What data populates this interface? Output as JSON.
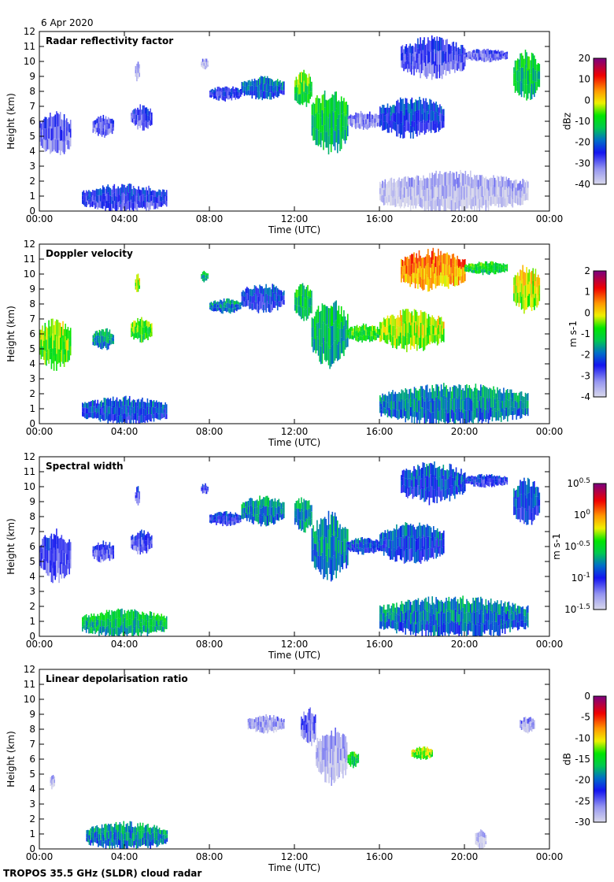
{
  "date_label": "6 Apr 2020",
  "footer": "TROPOS 35.5 GHz (SLDR) cloud radar",
  "chart_data": [
    {
      "type": "heatmap",
      "title": "Radar reflectivity factor",
      "xlabel": "Time (UTC)",
      "ylabel": "Height (km)",
      "xlim": [
        0,
        24
      ],
      "ylim": [
        0,
        12
      ],
      "xticks": [
        "00:00",
        "04:00",
        "08:00",
        "12:00",
        "16:00",
        "20:00",
        "00:00"
      ],
      "yticks": [
        "0",
        "1",
        "2",
        "3",
        "4",
        "5",
        "6",
        "7",
        "8",
        "9",
        "10",
        "11",
        "12"
      ],
      "colorbar": {
        "label": "dBz",
        "range": [
          -40,
          20
        ],
        "ticks": [
          "20",
          "10",
          "0",
          "-10",
          "-20",
          "-30",
          "-40"
        ]
      },
      "echo_regions": [
        [
          0,
          1.5,
          3.8,
          6.5,
          -30
        ],
        [
          2.5,
          3.5,
          5,
          6.3,
          -30
        ],
        [
          4.3,
          5.3,
          5.5,
          7,
          -28
        ],
        [
          4.5,
          4.7,
          8.7,
          10,
          -36
        ],
        [
          7.6,
          7.9,
          9.5,
          10.2,
          -35
        ],
        [
          8,
          9.5,
          7.4,
          8.3,
          -26
        ],
        [
          9.5,
          11.5,
          7.5,
          8.9,
          -20
        ],
        [
          12,
          12.8,
          7,
          9.3,
          -8
        ],
        [
          12.8,
          14.5,
          4,
          8,
          -12
        ],
        [
          14.5,
          16,
          5.5,
          6.6,
          -32
        ],
        [
          16,
          19,
          5,
          7.5,
          -24
        ],
        [
          17,
          20,
          9,
          11.5,
          -28
        ],
        [
          20,
          22,
          10,
          10.8,
          -30
        ],
        [
          22.3,
          23.5,
          7.5,
          10.5,
          -12
        ],
        [
          2,
          6,
          0,
          1.7,
          -26
        ],
        [
          16,
          23,
          0,
          2.5,
          -37
        ]
      ]
    },
    {
      "type": "heatmap",
      "title": "Doppler velocity",
      "xlabel": "Time (UTC)",
      "ylabel": "Height (km)",
      "xlim": [
        0,
        24
      ],
      "ylim": [
        0,
        12
      ],
      "xticks": [
        "00:00",
        "04:00",
        "08:00",
        "12:00",
        "16:00",
        "20:00",
        "00:00"
      ],
      "yticks": [
        "0",
        "1",
        "2",
        "3",
        "4",
        "5",
        "6",
        "7",
        "8",
        "9",
        "10",
        "11",
        "12"
      ],
      "colorbar": {
        "label": "m s-1",
        "range": [
          -4,
          2
        ],
        "ticks": [
          "2",
          "1",
          "0",
          "-1",
          "-2",
          "-3",
          "-4"
        ]
      },
      "echo_regions": [
        [
          0,
          1.5,
          3.8,
          6.9,
          -0.5
        ],
        [
          2.5,
          3.5,
          5,
          6.3,
          -1.6
        ],
        [
          4.3,
          5.3,
          5.5,
          7,
          -0.7
        ],
        [
          4.5,
          4.7,
          8.7,
          10,
          -0.3
        ],
        [
          7.6,
          7.9,
          9.5,
          10.2,
          -1.4
        ],
        [
          8,
          9.5,
          7.4,
          8.3,
          -1.8
        ],
        [
          9.5,
          11.5,
          7.5,
          9.3,
          -2.4
        ],
        [
          12,
          12.8,
          7,
          9.3,
          -1.2
        ],
        [
          12.8,
          14.5,
          4,
          8,
          -1.4
        ],
        [
          14.5,
          16,
          5.5,
          6.6,
          -0.8
        ],
        [
          16,
          19,
          5,
          7.5,
          -0.3
        ],
        [
          17,
          20,
          9,
          11.5,
          0.5
        ],
        [
          20,
          22,
          10,
          10.8,
          -1
        ],
        [
          22.3,
          23.5,
          7.5,
          10.5,
          -0.2
        ],
        [
          2,
          6,
          0,
          1.7,
          -2.2
        ],
        [
          16,
          23,
          0,
          2.5,
          -1.8
        ]
      ]
    },
    {
      "type": "heatmap",
      "title": "Spectral width",
      "xlabel": "Time (UTC)",
      "ylabel": "Height (km)",
      "xlim": [
        0,
        24
      ],
      "ylim": [
        0,
        12
      ],
      "xticks": [
        "00:00",
        "04:00",
        "08:00",
        "12:00",
        "16:00",
        "20:00",
        "00:00"
      ],
      "yticks": [
        "0",
        "1",
        "2",
        "3",
        "4",
        "5",
        "6",
        "7",
        "8",
        "9",
        "10",
        "11",
        "12"
      ],
      "colorbar": {
        "label": "m s-1",
        "range": [
          -1.5,
          0.5
        ],
        "ticks": [
          "0.5",
          "0",
          "-0.5",
          "-1",
          "-1.5"
        ],
        "tick_base": "10"
      },
      "echo_regions": [
        [
          0,
          1.5,
          3.8,
          6.9,
          -1.1
        ],
        [
          2.5,
          3.5,
          5,
          6.3,
          -1.1
        ],
        [
          4.3,
          5.3,
          5.5,
          7,
          -1.1
        ],
        [
          4.5,
          4.7,
          8.7,
          10,
          -1.1
        ],
        [
          7.6,
          7.9,
          9.5,
          10.2,
          -1.1
        ],
        [
          8,
          9.5,
          7.4,
          8.3,
          -1
        ],
        [
          9.5,
          11.5,
          7.5,
          9.3,
          -0.75
        ],
        [
          12,
          12.8,
          7,
          9.3,
          -0.7
        ],
        [
          12.8,
          14.5,
          4,
          8,
          -0.75
        ],
        [
          14.5,
          16,
          5.5,
          6.6,
          -0.9
        ],
        [
          16,
          19,
          5,
          7.5,
          -0.9
        ],
        [
          17,
          20,
          9,
          11.5,
          -0.9
        ],
        [
          20,
          22,
          10,
          10.8,
          -1
        ],
        [
          22.3,
          23.5,
          7.5,
          10.5,
          -0.9
        ],
        [
          2,
          6,
          0,
          1.7,
          -0.6
        ],
        [
          16,
          23,
          0,
          2.5,
          -0.8
        ]
      ]
    },
    {
      "type": "heatmap",
      "title": "Linear depolarisation ratio",
      "xlabel": "Time (UTC)",
      "ylabel": "Height (km)",
      "xlim": [
        0,
        24
      ],
      "ylim": [
        0,
        12
      ],
      "xticks": [
        "00:00",
        "04:00",
        "08:00",
        "12:00",
        "16:00",
        "20:00",
        "00:00"
      ],
      "yticks": [
        "0",
        "1",
        "2",
        "3",
        "4",
        "5",
        "6",
        "7",
        "8",
        "9",
        "10",
        "11",
        "12"
      ],
      "colorbar": {
        "label": "dB",
        "range": [
          -30,
          0
        ],
        "ticks": [
          "0",
          "-5",
          "-10",
          "-15",
          "-20",
          "-25",
          "-30"
        ]
      },
      "echo_regions": [
        [
          0.5,
          0.7,
          4,
          5,
          -28
        ],
        [
          9.8,
          11.5,
          7.8,
          8.9,
          -27
        ],
        [
          12.3,
          13,
          7,
          9.3,
          -25
        ],
        [
          13,
          14.5,
          4.5,
          8,
          -28
        ],
        [
          14.5,
          15,
          5.5,
          6.5,
          -15
        ],
        [
          17.5,
          18.5,
          6,
          6.8,
          -12
        ],
        [
          22.6,
          23.3,
          7.8,
          8.8,
          -27
        ],
        [
          2.2,
          6,
          0,
          1.7,
          -19
        ],
        [
          20.5,
          21,
          0,
          1.3,
          -29
        ]
      ]
    }
  ]
}
